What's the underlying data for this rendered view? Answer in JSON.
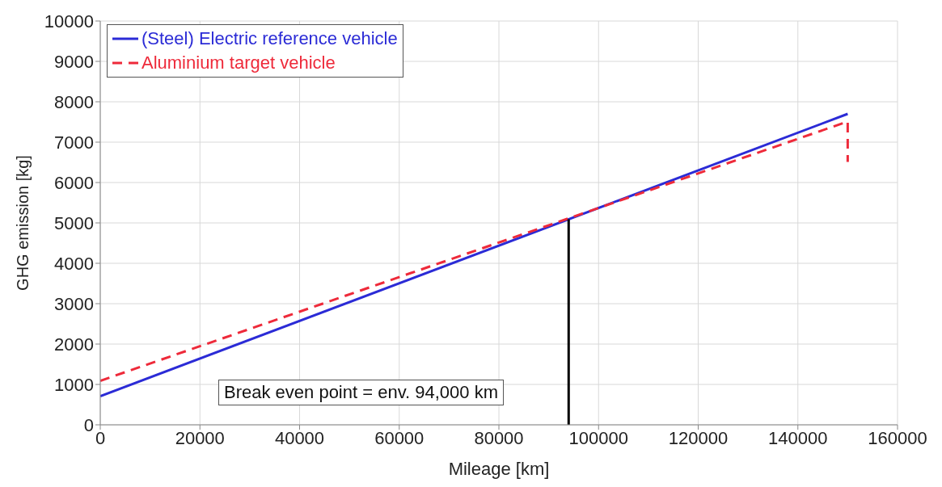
{
  "chart_data": {
    "type": "line",
    "xlabel": "Mileage [km]",
    "ylabel": "GHG emission [kg]",
    "xlim": [
      0,
      160000
    ],
    "xticks": [
      0,
      20000,
      40000,
      60000,
      80000,
      100000,
      120000,
      140000,
      160000
    ],
    "ylim": [
      0,
      10000
    ],
    "yticks": [
      0,
      1000,
      2000,
      3000,
      4000,
      5000,
      6000,
      7000,
      8000,
      9000,
      10000
    ],
    "grid": true,
    "legend": "top left",
    "marker": "none",
    "series": [
      {
        "name": "(Steel) Electric reference vehicle",
        "color": "#2b2bd6",
        "x": [
          0,
          150000
        ],
        "values": [
          710,
          7700
        ],
        "line_style": "solid"
      },
      {
        "name": "Aluminium target vehicle",
        "color": "#ee2a3a",
        "x": [
          0,
          150000,
          150000
        ],
        "values": [
          1090,
          7510,
          6510
        ],
        "line_style": "dashed"
      },
      {
        "color": "#000000",
        "x": [
          94000,
          94000
        ],
        "values": [
          0,
          5090
        ],
        "line_style": "solid"
      }
    ],
    "annotations": [
      "Break even point = env. 94,000 km"
    ]
  }
}
